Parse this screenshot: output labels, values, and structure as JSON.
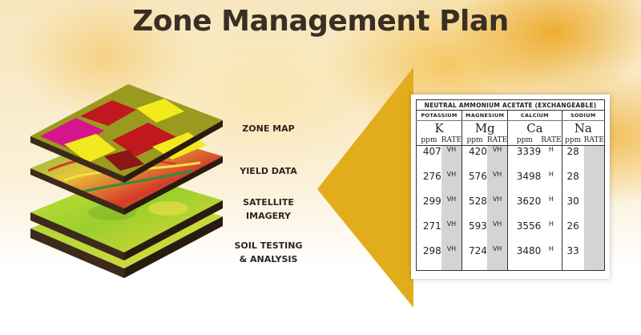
{
  "title": "Zone Management Plan",
  "layers": [
    {
      "label_line1": "ZONE MAP",
      "label_line2": ""
    },
    {
      "label_line1": "YIELD DATA",
      "label_line2": ""
    },
    {
      "label_line1": "SATELLITE",
      "label_line2": "IMAGERY"
    },
    {
      "label_line1": "SOIL TESTING",
      "label_line2": "& ANALYSIS"
    }
  ],
  "soil_table": {
    "heading": "NEUTRAL AMMONIUM ACETATE (EXCHANGEABLE)",
    "columns": [
      {
        "name": "POTASSIUM",
        "symbol": "K",
        "unit": "ppm",
        "rate_label": "RATE"
      },
      {
        "name": "MAGNESIUM",
        "symbol": "Mg",
        "unit": "ppm",
        "rate_label": "RATE"
      },
      {
        "name": "CALCIUM",
        "symbol": "Ca",
        "unit": "ppm",
        "rate_label": "RATE"
      },
      {
        "name": "SODIUM",
        "symbol": "Na",
        "unit": "ppm",
        "rate_label": "RATE"
      }
    ],
    "rows": [
      {
        "k": "407",
        "k_rate": "VH",
        "mg": "420",
        "mg_rate": "VH",
        "ca": "3339",
        "ca_rate": "H",
        "na": "28"
      },
      {
        "k": "276",
        "k_rate": "VH",
        "mg": "576",
        "mg_rate": "VH",
        "ca": "3498",
        "ca_rate": "H",
        "na": "28"
      },
      {
        "k": "299",
        "k_rate": "VH",
        "mg": "528",
        "mg_rate": "VH",
        "ca": "3620",
        "ca_rate": "H",
        "na": "30"
      },
      {
        "k": "271",
        "k_rate": "VH",
        "mg": "593",
        "mg_rate": "VH",
        "ca": "3556",
        "ca_rate": "H",
        "na": "26"
      },
      {
        "k": "298",
        "k_rate": "VH",
        "mg": "724",
        "mg_rate": "VH",
        "ca": "3480",
        "ca_rate": "H",
        "na": "33"
      }
    ]
  },
  "colors": {
    "accent": "#e2ad1c",
    "title": "#3a2f24"
  }
}
